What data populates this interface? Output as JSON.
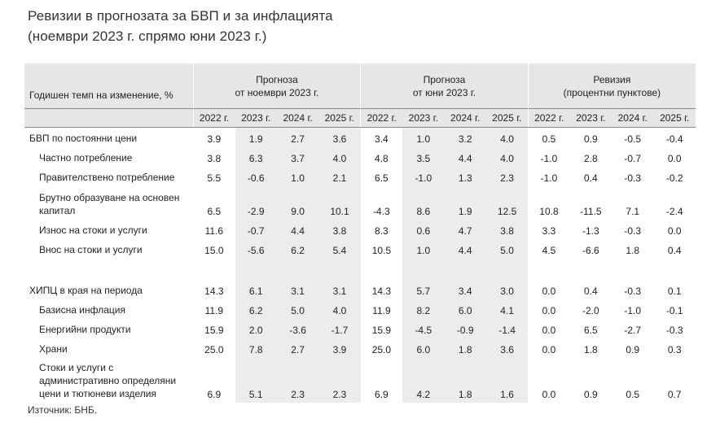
{
  "title_line1": "Ревизии в прогнозата за БВП и за инфлацията",
  "title_line2": "(ноември 2023 г. спрямо юни 2023 г.)",
  "header": {
    "row_label": "Годишен темп на изменение, %",
    "group1": "Прогноза\nот ноември 2023 г.",
    "group2": "Прогноза\nот юни 2023 г.",
    "group3": "Ревизия\n(процентни пунктове)",
    "years": [
      "2022 г.",
      "2023 г.",
      "2024 г.",
      "2025 г.",
      "2022 г.",
      "2023 г.",
      "2024 г.",
      "2025 г.",
      "2022 г.",
      "2023 г.",
      "2024 г.",
      "2025 г."
    ]
  },
  "rows": [
    {
      "name": "БВП по постоянни цени",
      "sub": false,
      "values": [
        "3.9",
        "1.9",
        "2.7",
        "3.6",
        "3.4",
        "1.0",
        "3.2",
        "4.0",
        "0.5",
        "0.9",
        "-0.5",
        "-0.4"
      ]
    },
    {
      "name": "Частно потребление",
      "sub": true,
      "values": [
        "3.8",
        "6.3",
        "3.7",
        "4.0",
        "4.8",
        "3.5",
        "4.4",
        "4.0",
        "-1.0",
        "2.8",
        "-0.7",
        "0.0"
      ]
    },
    {
      "name": "Правителствено потребление",
      "sub": true,
      "values": [
        "5.5",
        "-0.6",
        "1.0",
        "2.1",
        "6.5",
        "-1.0",
        "1.3",
        "2.3",
        "-1.0",
        "0.4",
        "-0.3",
        "-0.2"
      ]
    },
    {
      "name": "Брутно образуване на основен капитал",
      "sub": true,
      "values": [
        "6.5",
        "-2.9",
        "9.0",
        "10.1",
        "-4.3",
        "8.6",
        "1.9",
        "12.5",
        "10.8",
        "-11.5",
        "7.1",
        "-2.4"
      ]
    },
    {
      "name": "Износ на стоки и услуги",
      "sub": true,
      "values": [
        "11.6",
        "-0.7",
        "4.4",
        "3.8",
        "8.3",
        "0.6",
        "4.7",
        "3.8",
        "3.3",
        "-1.3",
        "-0.3",
        "0.0"
      ]
    },
    {
      "name": "Внос на стоки и услуги",
      "sub": true,
      "values": [
        "15.0",
        "-5.6",
        "6.2",
        "5.4",
        "10.5",
        "1.0",
        "4.4",
        "5.0",
        "4.5",
        "-6.6",
        "1.8",
        "0.4"
      ]
    },
    {
      "name": "ХИПЦ в края на периода",
      "sub": false,
      "values": [
        "14.3",
        "6.1",
        "3.1",
        "3.1",
        "14.3",
        "5.7",
        "3.4",
        "3.0",
        "0.0",
        "0.4",
        "-0.3",
        "0.1"
      ]
    },
    {
      "name": "Базисна инфлация",
      "sub": true,
      "values": [
        "11.9",
        "6.2",
        "5.0",
        "4.0",
        "11.9",
        "8.2",
        "6.0",
        "4.1",
        "0.0",
        "-2.0",
        "-1.0",
        "-0.1"
      ]
    },
    {
      "name": "Енергийни продукти",
      "sub": true,
      "values": [
        "15.9",
        "2.0",
        "-3.6",
        "-1.7",
        "15.9",
        "-4.5",
        "-0.9",
        "-1.4",
        "0.0",
        "6.5",
        "-2.7",
        "-0.3"
      ]
    },
    {
      "name": "Храни",
      "sub": true,
      "values": [
        "25.0",
        "7.8",
        "2.7",
        "3.9",
        "25.0",
        "6.0",
        "1.8",
        "3.6",
        "0.0",
        "1.8",
        "0.9",
        "0.3"
      ]
    },
    {
      "name": "Стоки и услуги с административно определяни цени и тютюневи изделия",
      "sub": true,
      "values": [
        "6.9",
        "5.1",
        "2.3",
        "2.3",
        "6.9",
        "4.2",
        "1.8",
        "1.6",
        "0.0",
        "0.9",
        "0.5",
        "0.7"
      ]
    }
  ],
  "source": "Източник: БНБ."
}
